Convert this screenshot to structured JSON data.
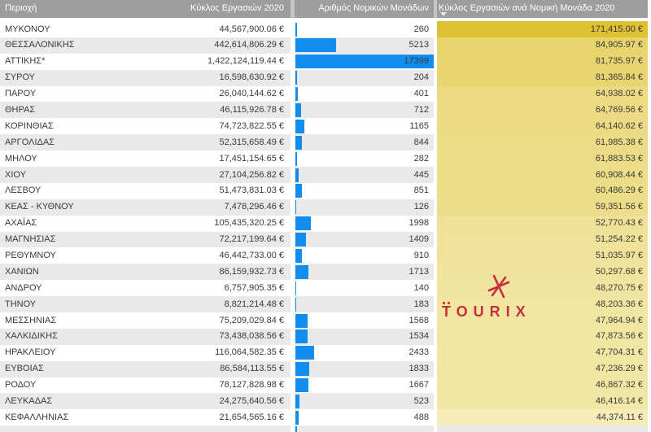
{
  "header": {
    "region": "Περιοχή",
    "turnover": "Κύκλος Εργασιών 2020",
    "units": "Αριθμός Νομικών Μονάδων",
    "per_unit": "Κύκλος Εργασιών ανά Νομική Μονάδα 2020"
  },
  "colors": {
    "header_bg": "#9D9D9D",
    "header_sep": "#C6C6C6",
    "row_alt": "#E9E9E9",
    "bar_blue": "#118DF0",
    "watermark_red": "#C5303C",
    "gold_scale_min": "#F5ECB8",
    "gold_scale_max": "#DEC133"
  },
  "watermark": {
    "text": "TOURIX"
  },
  "chart_data": {
    "type": "table",
    "title": "",
    "columns": [
      "Περιοχή",
      "Κύκλος Εργασιών 2020",
      "Αριθμός Νομικών Μονάδων",
      "Κύκλος Εργασιών ανά Νομική Μονάδα 2020"
    ],
    "sort": {
      "column": "Κύκλος Εργασιών ανά Νομική Μονάδα 2020",
      "direction": "descending"
    },
    "bar_max": 17399,
    "rows": [
      {
        "region": "ΜΥΚΟΝΟΥ",
        "turnover": "44,567,900.06 €",
        "units": 260,
        "per_unit": "171,415.00 €",
        "color": "#DEC133"
      },
      {
        "region": "ΘΕΣΣΑΛΟΝΙΚΗΣ",
        "turnover": "442,614,806.29 €",
        "units": 5213,
        "per_unit": "84,905.97 €",
        "color": "#E8D46D"
      },
      {
        "region": "ΑΤΤΙΚΗΣ*",
        "turnover": "1,422,124,119.44 €",
        "units": 17399,
        "per_unit": "81,735.97 €",
        "color": "#E9D570"
      },
      {
        "region": "ΣΥΡΟΥ",
        "turnover": "16,598,630.92 €",
        "units": 204,
        "per_unit": "81,365.84 €",
        "color": "#E9D570"
      },
      {
        "region": "ΠΑΡΟΥ",
        "turnover": "26,040,144.62 €",
        "units": 401,
        "per_unit": "64,938.02 €",
        "color": "#ECDB83"
      },
      {
        "region": "ΘΗΡΑΣ",
        "turnover": "46,115,926.78 €",
        "units": 712,
        "per_unit": "64,769.56 €",
        "color": "#ECDB83"
      },
      {
        "region": "ΚΟΡΙΝΘΙΑΣ",
        "turnover": "74,723,822.55 €",
        "units": 1165,
        "per_unit": "64,140.62 €",
        "color": "#ECDB84"
      },
      {
        "region": "ΑΡΓΟΛΙΔΑΣ",
        "turnover": "52,315,658.49 €",
        "units": 844,
        "per_unit": "61,985.38 €",
        "color": "#ECDC86"
      },
      {
        "region": "ΜΗΛΟΥ",
        "turnover": "17,451,154.65 €",
        "units": 282,
        "per_unit": "61,883.53 €",
        "color": "#ECDC87"
      },
      {
        "region": "ΧΙΟΥ",
        "turnover": "27,104,256.82 €",
        "units": 445,
        "per_unit": "60,908.44 €",
        "color": "#EDDC88"
      },
      {
        "region": "ΛΕΣΒΟΥ",
        "turnover": "51,473,831.03 €",
        "units": 851,
        "per_unit": "60,486.29 €",
        "color": "#EDDD88"
      },
      {
        "region": "ΚΕΑΣ - ΚΥΘΝΟΥ",
        "turnover": "7,478,296.46 €",
        "units": 126,
        "per_unit": "59,351.56 €",
        "color": "#EDDD8A"
      },
      {
        "region": "ΑΧΑΪΑΣ",
        "turnover": "105,435,320.25 €",
        "units": 1998,
        "per_unit": "52,770.43 €",
        "color": "#EFE196"
      },
      {
        "region": "ΜΑΓΝΗΣΙΑΣ",
        "turnover": "72,217,199.64 €",
        "units": 1409,
        "per_unit": "51,254.22 €",
        "color": "#F0E299"
      },
      {
        "region": "ΡΕΘΥΜΝΟΥ",
        "turnover": "46,442,733.00 €",
        "units": 910,
        "per_unit": "51,035.97 €",
        "color": "#F0E29A"
      },
      {
        "region": "ΧΑΝΙΩΝ",
        "turnover": "86,159,932.73 €",
        "units": 1713,
        "per_unit": "50,297.68 €",
        "color": "#F0E39B"
      },
      {
        "region": "ΑΝΔΡΟΥ",
        "turnover": "6,757,905.35 €",
        "units": 140,
        "per_unit": "48,270.75 €",
        "color": "#F1E4A1"
      },
      {
        "region": "ΤΗΝΟΥ",
        "turnover": "8,821,214.48 €",
        "units": 183,
        "per_unit": "48,203.36 €",
        "color": "#F1E5A1"
      },
      {
        "region": "ΜΕΣΣΗΝΙΑΣ",
        "turnover": "75,209,029.84 €",
        "units": 1568,
        "per_unit": "47,964.94 €",
        "color": "#F1E5A2"
      },
      {
        "region": "ΧΑΛΚΙΔΙΚΗΣ",
        "turnover": "73,438,038.56 €",
        "units": 1534,
        "per_unit": "47,873.56 €",
        "color": "#F1E5A2"
      },
      {
        "region": "ΗΡΑΚΛΕΙΟΥ",
        "turnover": "116,064,582.35 €",
        "units": 2433,
        "per_unit": "47,704.31 €",
        "color": "#F1E5A3"
      },
      {
        "region": "ΕΥΒΟΙΑΣ",
        "turnover": "86,584,113.55 €",
        "units": 1833,
        "per_unit": "47,236.29 €",
        "color": "#F2E5A4"
      },
      {
        "region": "ΡΟΔΟΥ",
        "turnover": "78,127,828.98 €",
        "units": 1667,
        "per_unit": "46,867.32 €",
        "color": "#F2E6A5"
      },
      {
        "region": "ΛΕΥΚΑΔΑΣ",
        "turnover": "24,275,640.56 €",
        "units": 523,
        "per_unit": "46,416.14 €",
        "color": "#F2E6A7"
      },
      {
        "region": "ΚΕΦΑΛΛΗΝΙΑΣ",
        "turnover": "21,654,565.16 €",
        "units": 488,
        "per_unit": "44,374.11 €",
        "color": "#F5ECB8"
      }
    ]
  }
}
